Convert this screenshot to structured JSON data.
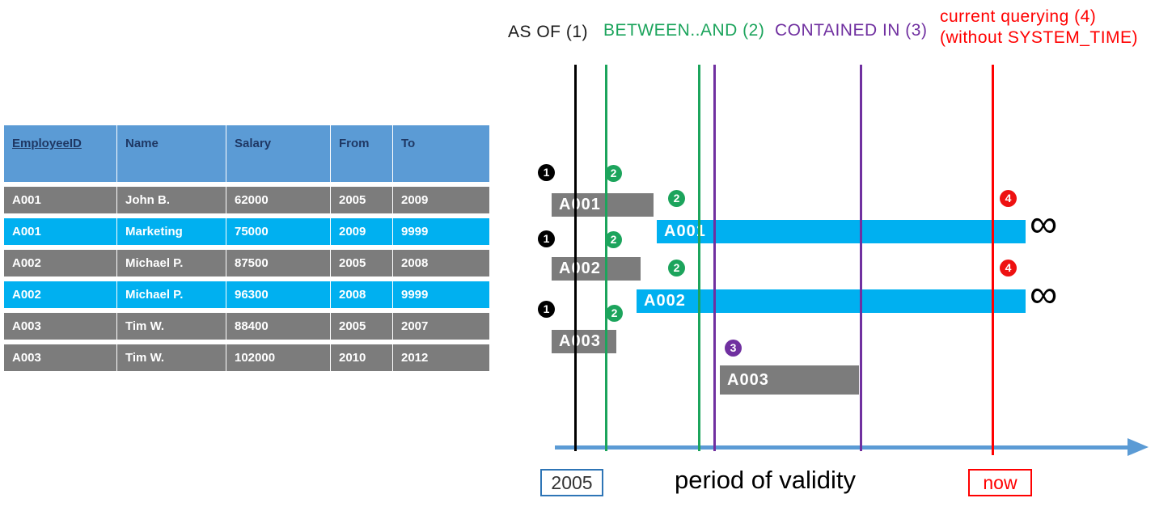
{
  "table": {
    "headers": [
      "EmployeeID",
      "Name",
      "Salary",
      "From",
      "To"
    ],
    "rows": [
      {
        "cells": [
          "A001",
          "John  B.",
          "62000",
          "2005",
          "2009"
        ],
        "variant": "gray"
      },
      {
        "cells": [
          "A001",
          "Marketing",
          "75000",
          "2009",
          "9999"
        ],
        "variant": "cyan"
      },
      {
        "cells": [
          "A002",
          "Michael P.",
          "87500",
          "2005",
          "2008"
        ],
        "variant": "gray"
      },
      {
        "cells": [
          "A002",
          "Michael P.",
          "96300",
          "2008",
          "9999"
        ],
        "variant": "cyan"
      },
      {
        "cells": [
          "A003",
          "Tim W.",
          "88400",
          "2005",
          "2007"
        ],
        "variant": "gray"
      },
      {
        "cells": [
          "A003",
          "Tim W.",
          "102000",
          "2010",
          "2012"
        ],
        "variant": "gray"
      }
    ]
  },
  "legend": {
    "as_of": "AS OF (1)",
    "between_and": "BETWEEN..AND (2)",
    "contained_in": "CONTAINED IN (3)",
    "current_querying": "current querying (4)",
    "current_querying_sub": "(without SYSTEM_TIME)"
  },
  "timeline": {
    "bars": [
      {
        "label": "A001",
        "variant": "gray"
      },
      {
        "label": "A001",
        "variant": "cyan"
      },
      {
        "label": "A002",
        "variant": "gray"
      },
      {
        "label": "A002",
        "variant": "cyan"
      },
      {
        "label": "A003",
        "variant": "gray"
      },
      {
        "label": "A003",
        "variant": "gray"
      }
    ],
    "badges": [
      {
        "num": "1",
        "color": "black"
      },
      {
        "num": "2",
        "color": "green"
      },
      {
        "num": "2",
        "color": "green"
      },
      {
        "num": "4",
        "color": "red"
      },
      {
        "num": "1",
        "color": "black"
      },
      {
        "num": "2",
        "color": "green"
      },
      {
        "num": "2",
        "color": "green"
      },
      {
        "num": "4",
        "color": "red"
      },
      {
        "num": "1",
        "color": "black"
      },
      {
        "num": "2",
        "color": "green"
      },
      {
        "num": "3",
        "color": "purple"
      }
    ],
    "infinity": "∞",
    "axis": {
      "start_label": "2005",
      "title": "period of validity",
      "end_label": "now"
    }
  },
  "colors": {
    "header_blue": "#5b9bd5",
    "header_text": "#1f3864",
    "row_gray": "#7c7c7c",
    "row_cyan": "#00b0f0",
    "green": "#1ca45c",
    "purple": "#7030a0",
    "red": "#ff0000",
    "black": "#000000",
    "axis_blue": "#5b9bd5",
    "year_box_border": "#2e75b6"
  }
}
